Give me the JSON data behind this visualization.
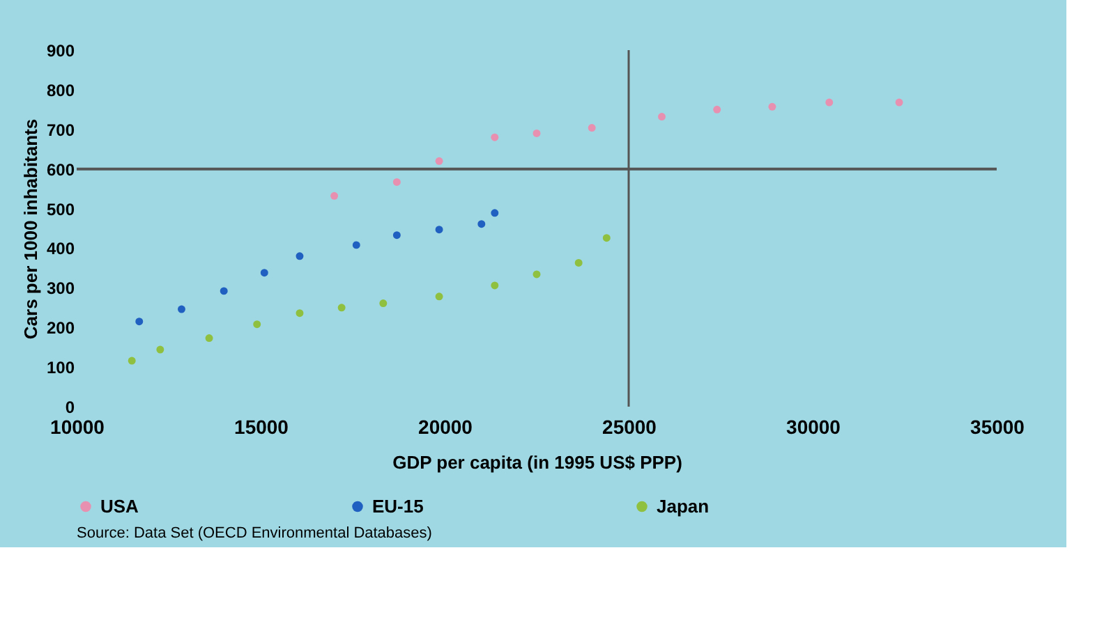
{
  "chart_data": {
    "type": "scatter",
    "xlabel": "GDP per capita (in 1995 US$ PPP)",
    "ylabel": "Cars per 1000 inhabitants",
    "series": [
      {
        "name": "USA",
        "color": "#e890b0",
        "x": [
          17000,
          18700,
          19850,
          21360,
          22500,
          24000,
          25900,
          27400,
          28900,
          30450,
          32350
        ],
        "values": [
          532,
          567,
          620,
          680,
          690,
          704,
          732,
          750,
          757,
          768,
          768
        ]
      },
      {
        "name": "EU-15",
        "color": "#2060c0",
        "x": [
          11700,
          12850,
          14000,
          15100,
          16060,
          17600,
          18700,
          19850,
          21000,
          21360
        ],
        "values": [
          215,
          246,
          292,
          338,
          380,
          408,
          433,
          447,
          461,
          489
        ]
      },
      {
        "name": "Japan",
        "color": "#90c040",
        "x": [
          11500,
          12270,
          13600,
          14900,
          16060,
          17200,
          18330,
          19850,
          21360,
          22500,
          23640,
          24400
        ],
        "values": [
          116,
          144,
          173,
          208,
          236,
          250,
          261,
          278,
          306,
          334,
          363,
          426
        ]
      }
    ],
    "xlim": [
      10000,
      35000
    ],
    "xticks": [
      10000,
      15000,
      20000,
      25000,
      30000,
      35000
    ],
    "ylim": [
      0,
      900
    ],
    "yticks": [
      0,
      100,
      200,
      300,
      400,
      500,
      600,
      700,
      800,
      900
    ],
    "ref_lines": [
      {
        "axis": "y",
        "value": 600,
        "color": "#555555"
      },
      {
        "axis": "x",
        "value": 25000,
        "color": "#555555"
      }
    ],
    "grid": false,
    "legend": "bottom",
    "marker": "circle",
    "annotations": [
      "Source: Data Set (OECD Environmental Databases)"
    ]
  }
}
